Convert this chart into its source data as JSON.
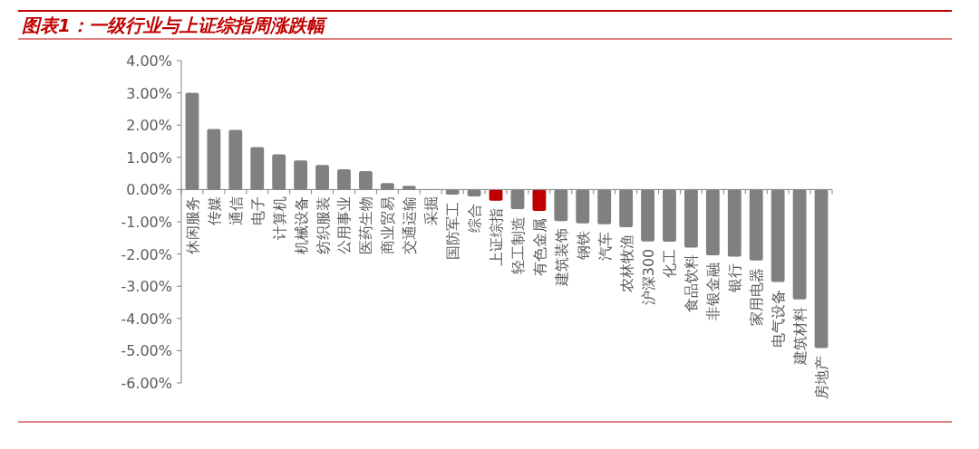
{
  "chart_data": {
    "type": "bar",
    "title": "图表1：一级行业与上证综指周涨跌幅",
    "categories": [
      "休闲服务",
      "传媒",
      "通信",
      "电子",
      "计算机",
      "机械设备",
      "纺织服装",
      "公用事业",
      "医药生物",
      "商业贸易",
      "交通运输",
      "采掘",
      "国防军工",
      "综合",
      "上证综指",
      "轻工制造",
      "有色金属",
      "建筑装饰",
      "钢铁",
      "汽车",
      "农林牧渔",
      "沪深300",
      "化工",
      "食品饮料",
      "非银金融",
      "银行",
      "家用电器",
      "电气设备",
      "建筑材料",
      "房地产"
    ],
    "values": [
      3.0,
      1.88,
      1.85,
      1.32,
      1.09,
      0.9,
      0.76,
      0.63,
      0.57,
      0.2,
      0.12,
      0.0,
      -0.16,
      -0.21,
      -0.35,
      -0.61,
      -0.66,
      -0.98,
      -1.05,
      -1.08,
      -1.17,
      -1.61,
      -1.62,
      -1.8,
      -2.04,
      -2.08,
      -2.2,
      -2.87,
      -3.41,
      -4.92
    ],
    "colors": [
      "#808080",
      "#808080",
      "#808080",
      "#808080",
      "#808080",
      "#808080",
      "#808080",
      "#808080",
      "#808080",
      "#808080",
      "#808080",
      "#808080",
      "#808080",
      "#808080",
      "#c00000",
      "#808080",
      "#c00000",
      "#808080",
      "#808080",
      "#808080",
      "#808080",
      "#808080",
      "#808080",
      "#808080",
      "#808080",
      "#808080",
      "#808080",
      "#808080",
      "#808080",
      "#808080"
    ],
    "ylim": [
      -6,
      4
    ],
    "yticks": [
      {
        "value": 4,
        "label": "4.00%"
      },
      {
        "value": 3,
        "label": "3.00%"
      },
      {
        "value": 2,
        "label": "2.00%"
      },
      {
        "value": 1,
        "label": "1.00%"
      },
      {
        "value": 0,
        "label": "0.00%"
      },
      {
        "value": -1,
        "label": "-1.00%"
      },
      {
        "value": -2,
        "label": "-2.00%"
      },
      {
        "value": -3,
        "label": "-3.00%"
      },
      {
        "value": -4,
        "label": "-4.00%"
      },
      {
        "value": -5,
        "label": "-5.00%"
      },
      {
        "value": -6,
        "label": "-6.00%"
      }
    ],
    "grid": false
  }
}
